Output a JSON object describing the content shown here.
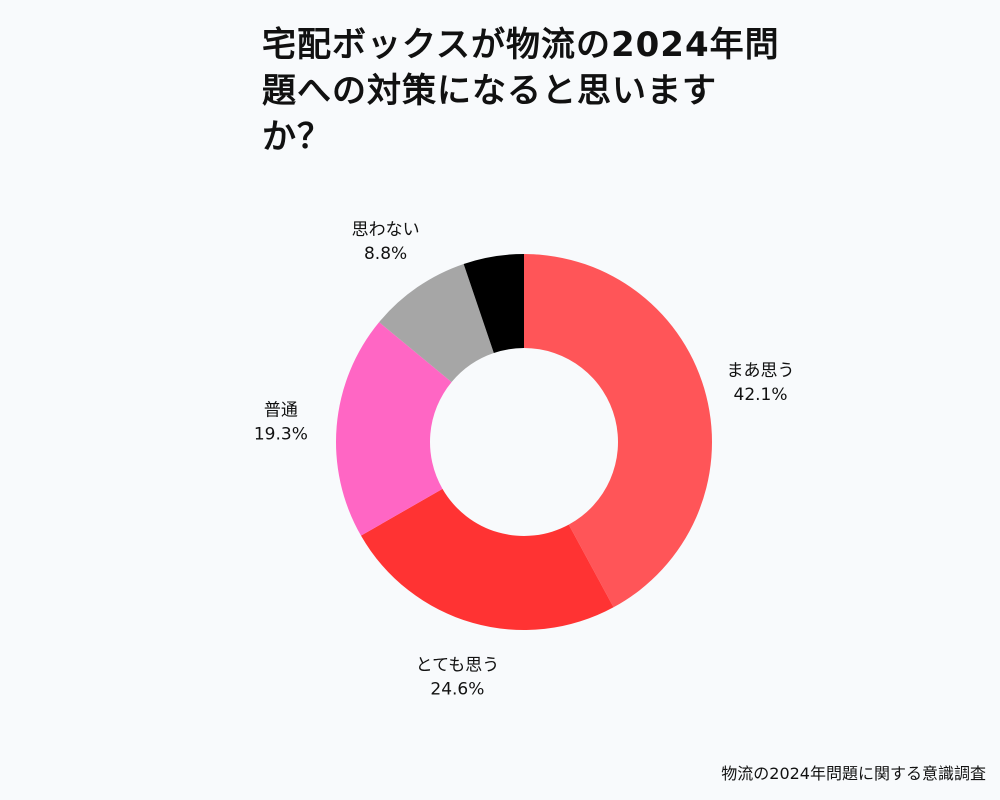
{
  "title_lines": [
    "宅配ボックスが物流の2024年問",
    "題への対策になると思います",
    "か？"
  ],
  "source": "物流の2024年問題に関する意識調査",
  "chart_data": {
    "type": "pie",
    "donut": true,
    "title": "宅配ボックスが物流の2024年問題への対策になると思いますか？",
    "slices": [
      {
        "label": "まあ思う",
        "value": 42.1,
        "display": "42.1%",
        "color": "#ff5558"
      },
      {
        "label": "とても思う",
        "value": 24.6,
        "display": "24.6%",
        "color": "#ff3333"
      },
      {
        "label": "普通",
        "value": 19.3,
        "display": "19.3%",
        "color": "#ff66c4"
      },
      {
        "label": "思わない",
        "value": 8.8,
        "display": "8.8%",
        "color": "#a6a6a6"
      },
      {
        "label": "",
        "value": 5.2,
        "display": "",
        "color": "#000000"
      }
    ],
    "start_angle_deg": 0,
    "direction": "clockwise"
  }
}
